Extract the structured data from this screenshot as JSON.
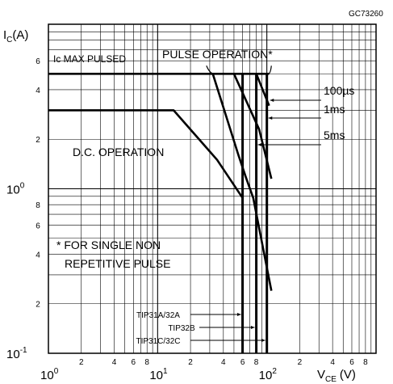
{
  "chart_data": {
    "type": "line",
    "figure_code": "GC73260",
    "x_scale": "log",
    "y_scale": "log",
    "xlim": [
      1,
      200
    ],
    "ylim": [
      0.1,
      10
    ],
    "xlabel": {
      "main": "V",
      "sub": "CE",
      "unit": "(V)"
    },
    "ylabel": {
      "main": "I",
      "sub": "C",
      "unit": "(A)"
    },
    "x_ticks": [
      {
        "v": 1,
        "base": "10",
        "exp": "0",
        "major": true
      },
      {
        "v": 2,
        "label": "2"
      },
      {
        "v": 4,
        "label": "4"
      },
      {
        "v": 6,
        "label": "6"
      },
      {
        "v": 8,
        "label": "8"
      },
      {
        "v": 10,
        "base": "10",
        "exp": "1",
        "major": true
      },
      {
        "v": 20,
        "label": "2"
      },
      {
        "v": 40,
        "label": "4"
      },
      {
        "v": 60,
        "label": "6"
      },
      {
        "v": 80,
        "label": "8"
      },
      {
        "v": 100,
        "base": "10",
        "exp": "2",
        "major": true
      },
      {
        "v": 200,
        "label": "2"
      }
    ],
    "x_extra_ticks": [
      {
        "v": 400,
        "label": "4"
      },
      {
        "v": 600,
        "label": "6"
      },
      {
        "v": 800,
        "label": "8"
      }
    ],
    "y_ticks": [
      {
        "v": 0.1,
        "base": "10",
        "exp": "-1",
        "major": true
      },
      {
        "v": 0.2,
        "label": "2"
      },
      {
        "v": 0.4,
        "label": "4"
      },
      {
        "v": 0.6,
        "label": "6"
      },
      {
        "v": 0.8,
        "label": "8"
      },
      {
        "v": 1,
        "base": "10",
        "exp": "0",
        "major": true
      },
      {
        "v": 2,
        "label": "2"
      },
      {
        "v": 4,
        "label": "4"
      },
      {
        "v": 6,
        "label": "6"
      }
    ],
    "grid": true,
    "series": [
      {
        "name": "D.C. OPERATION",
        "points": [
          [
            1,
            3
          ],
          [
            14,
            3
          ],
          [
            35,
            1.5
          ],
          [
            60,
            0.88
          ],
          [
            60,
            0.1
          ]
        ]
      },
      {
        "name": "5ms",
        "points": [
          [
            32,
            5
          ],
          [
            55,
            1.6
          ],
          [
            65,
            1.15
          ],
          [
            75,
            0.88
          ],
          [
            110,
            0.24
          ]
        ]
      },
      {
        "name": "1ms",
        "points": [
          [
            50,
            5
          ],
          [
            85,
            2.3
          ],
          [
            110,
            1.15
          ]
        ]
      },
      {
        "name": "100µs",
        "points": [
          [
            80,
            5
          ],
          [
            105,
            3.2
          ]
        ]
      },
      {
        "name": "IC MAX PULSED",
        "points": [
          [
            1,
            5
          ],
          [
            105,
            5
          ]
        ]
      },
      {
        "name": "TIP31A/32A",
        "points": [
          [
            60,
            0.1
          ],
          [
            60,
            5
          ]
        ]
      },
      {
        "name": "TIP32B",
        "points": [
          [
            80,
            0.1
          ],
          [
            80,
            5
          ]
        ]
      },
      {
        "name": "TIP31C/32C",
        "points": [
          [
            100,
            0.1
          ],
          [
            100,
            5
          ]
        ]
      }
    ],
    "annotations": {
      "ic_max": "Ic  MAX  PULSED",
      "pulse_operation": "PULSE  OPERATION*",
      "dc_operation": "D.C.  OPERATION",
      "t100us": "100µs",
      "t1ms": "1ms",
      "t5ms": "5ms",
      "footnote_line1": "*  FOR  SINGLE  NON",
      "footnote_line2": "REPETITIVE  PULSE",
      "tip31a": "TIP31A/32A",
      "tip32b": "TIP32B",
      "tip31c": "TIP31C/32C"
    }
  }
}
